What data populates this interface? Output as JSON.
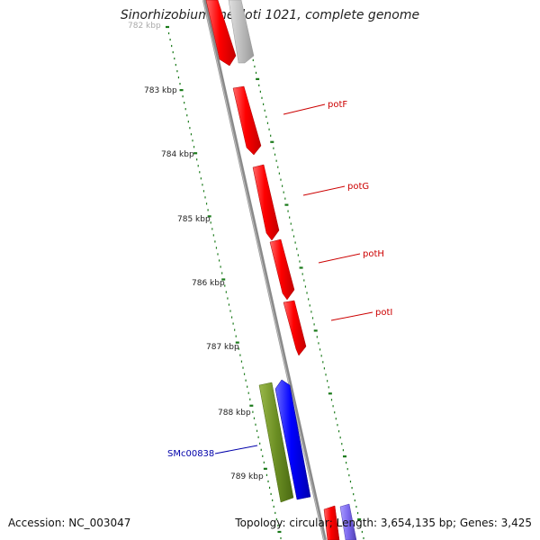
{
  "title": "Sinorhizobium meliloti 1021, complete genome",
  "footer": {
    "accession": "Accession: NC_003047",
    "summary": "Topology: circular; Length: 3,654,135 bp; Genes: 3,425"
  },
  "ruler": {
    "labels": [
      "782 kbp",
      "783 kbp",
      "784 kbp",
      "785 kbp",
      "786 kbp",
      "787 kbp",
      "788 kbp",
      "789 kbp"
    ]
  },
  "genes": [
    {
      "label": "potF",
      "color": "#cc0000"
    },
    {
      "label": "potG",
      "color": "#cc0000"
    },
    {
      "label": "potH",
      "color": "#cc0000"
    },
    {
      "label": "potI",
      "color": "#cc0000"
    },
    {
      "label": "SMc00838",
      "color": "#0000aa"
    }
  ],
  "colors": {
    "forward_gene": "#ff0000",
    "reverse_gene": "#0000ff",
    "other_gene": "#6b8e23",
    "faded_gene": "#bbbbbb",
    "ruler_ticks": "#1a7a1a",
    "backbone": "#888888"
  }
}
